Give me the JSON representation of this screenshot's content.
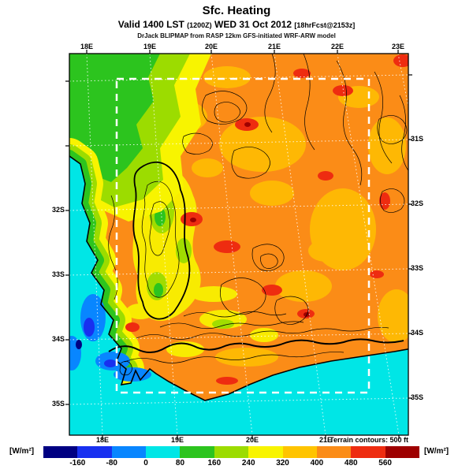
{
  "header": {
    "title": "Sfc. Heating",
    "valid_prefix": "Valid 1400 LST",
    "valid_zulu": "(1200Z)",
    "valid_date": "WED 31 Oct 2012",
    "valid_fcst": "[18hrFcst@2153z]",
    "model_line": "DrJack BLIPMAP from RASP 12km GFS-initiated WRF-ARW model"
  },
  "map": {
    "terrain_note": "Terrain contours: 500 ft",
    "axes": {
      "top": [
        "18E",
        "19E",
        "20E",
        "21E",
        "22E",
        "23E"
      ],
      "bottom": [
        "18E",
        "19E",
        "20E",
        "21E"
      ],
      "left": [
        "32S",
        "33S",
        "34S",
        "35S"
      ],
      "right": [
        "31S",
        "32S",
        "33S",
        "34S",
        "35S"
      ]
    }
  },
  "colorbar": {
    "unit_left": "[W/m²]",
    "unit_right": "[W/m²]",
    "tick_labels": [
      "-160",
      "-80",
      "0",
      "80",
      "160",
      "240",
      "320",
      "400",
      "480",
      "560"
    ],
    "colors": [
      "#000082",
      "#1830f0",
      "#0886ff",
      "#00e6e6",
      "#2cc41e",
      "#9cdc00",
      "#f8f400",
      "#ffc400",
      "#fb8c17",
      "#ee2c10",
      "#9e0000"
    ]
  },
  "chart_data": {
    "type": "heatmap",
    "title": "Sfc. Heating",
    "units": "W/m²",
    "valid": "1400 LST (1200Z) WED 31 Oct 2012",
    "forecast": "18hrFcst@2153z",
    "model": "DrJack BLIPMAP from RASP 12km GFS-initiated WRF-ARW model",
    "lon_range": [
      "18E",
      "23E"
    ],
    "lat_range": [
      "30S",
      "36S"
    ],
    "scale_levels": [
      -160,
      -80,
      0,
      80,
      160,
      240,
      320,
      400,
      480,
      560
    ],
    "terrain_contour_interval_ft": 500,
    "description": "Surface heating over the Western Cape region: ~0-80 W/m² over ocean (cyan) with patches of -160..0 (blue) near the coast, 80-240 along the west coast and northwest (green/yellow-green), 240-320 over coastal mountains (yellow), 400-480 over most of the interior (orange) with local maxima 480-560+ (red/dark red). White dashed rectangle marks inner model domain; black lines are 500 ft terrain contours."
  }
}
